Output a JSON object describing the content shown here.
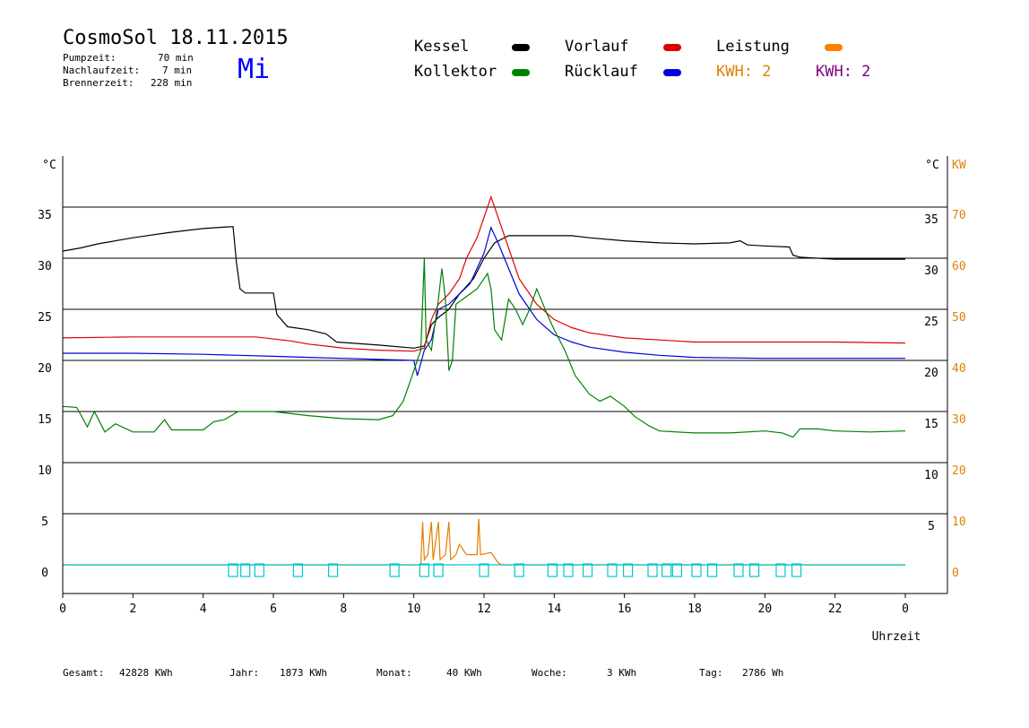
{
  "header": {
    "title": "CosmoSol 18.11.2015",
    "weekday": "Mi",
    "stats": [
      {
        "label": "Pumpzeit:",
        "value": "70 min"
      },
      {
        "label": "Nachlaufzeit:",
        "value": "7 min"
      },
      {
        "label": "Brennerzeit:",
        "value": "228 min"
      }
    ]
  },
  "legend": {
    "kessel": {
      "label": "Kessel",
      "color": "#000000"
    },
    "vorlauf": {
      "label": "Vorlauf",
      "color": "#e00000"
    },
    "leistung": {
      "label": "Leistung",
      "color": "#ff8000"
    },
    "kollektor": {
      "label": "Kollektor",
      "color": "#008000"
    },
    "ruecklauf": {
      "label": "Rücklauf",
      "color": "#0000e0"
    },
    "kwh1": {
      "label": "KWH: 2",
      "color": "#e08000"
    },
    "kwh2": {
      "label": "KWH: 2",
      "color": "#800080"
    }
  },
  "footer": {
    "gesamt_label": "Gesamt:",
    "gesamt_value": "42828 KWh",
    "jahr_label": "Jahr:",
    "jahr_value": "1873 KWh",
    "monat_label": "Monat:",
    "monat_value": "40 KWh",
    "woche_label": "Woche:",
    "woche_value": "3 KWh",
    "tag_label": "Tag:",
    "tag_value": "2786 Wh"
  },
  "chart_data": {
    "type": "line",
    "xlabel": "Uhrzeit",
    "y_unit_left": "°C",
    "y_unit_right": "°C",
    "y2_unit": "KW",
    "xlim": [
      0,
      24
    ],
    "ylim": [
      0,
      35
    ],
    "y2lim": [
      0,
      70
    ],
    "x_ticks": [
      "0",
      "2",
      "4",
      "6",
      "8",
      "10",
      "12",
      "14",
      "16",
      "18",
      "20",
      "22",
      "0"
    ],
    "y_ticks_left": [
      "0",
      "5",
      "10",
      "15",
      "20",
      "25",
      "30",
      "35"
    ],
    "y_ticks_right": [
      "5",
      "10",
      "15",
      "20",
      "25",
      "30",
      "35"
    ],
    "y2_ticks": [
      "0",
      "10",
      "20",
      "30",
      "40",
      "50",
      "60",
      "70"
    ],
    "grid": "horizontal",
    "series": [
      {
        "name": "Kessel",
        "color": "#000000",
        "points": [
          [
            0,
            30.7
          ],
          [
            0.5,
            31
          ],
          [
            1,
            31.4
          ],
          [
            2,
            32
          ],
          [
            3,
            32.5
          ],
          [
            4,
            32.9
          ],
          [
            4.85,
            33.1
          ],
          [
            4.95,
            29.5
          ],
          [
            5.05,
            27
          ],
          [
            5.2,
            26.6
          ],
          [
            6,
            26.6
          ],
          [
            6.1,
            24.5
          ],
          [
            6.4,
            23.3
          ],
          [
            7,
            23
          ],
          [
            7.5,
            22.6
          ],
          [
            7.8,
            21.8
          ],
          [
            9,
            21.5
          ],
          [
            10,
            21.2
          ],
          [
            10.3,
            21.4
          ],
          [
            10.5,
            23.5
          ],
          [
            10.7,
            24.2
          ],
          [
            11,
            25
          ],
          [
            11.3,
            26.5
          ],
          [
            11.7,
            28
          ],
          [
            12,
            30
          ],
          [
            12.3,
            31.5
          ],
          [
            12.7,
            32.2
          ],
          [
            13.5,
            32.2
          ],
          [
            14.5,
            32.2
          ],
          [
            15,
            32
          ],
          [
            16,
            31.7
          ],
          [
            17,
            31.5
          ],
          [
            18,
            31.4
          ],
          [
            19,
            31.5
          ],
          [
            19.3,
            31.7
          ],
          [
            19.5,
            31.3
          ],
          [
            20,
            31.2
          ],
          [
            20.7,
            31.1
          ],
          [
            20.8,
            30.3
          ],
          [
            21,
            30.1
          ],
          [
            22,
            29.9
          ],
          [
            24,
            29.9
          ]
        ]
      },
      {
        "name": "Vorlauf",
        "color": "#e00000",
        "points": [
          [
            0,
            22.2
          ],
          [
            2,
            22.3
          ],
          [
            4,
            22.3
          ],
          [
            5.5,
            22.3
          ],
          [
            6.5,
            21.9
          ],
          [
            7,
            21.6
          ],
          [
            7.5,
            21.4
          ],
          [
            8,
            21.2
          ],
          [
            9,
            21
          ],
          [
            10,
            20.9
          ],
          [
            10.3,
            21.2
          ],
          [
            10.5,
            24
          ],
          [
            10.7,
            25.5
          ],
          [
            11,
            26.5
          ],
          [
            11.3,
            28
          ],
          [
            11.5,
            30
          ],
          [
            11.8,
            32
          ],
          [
            12,
            34
          ],
          [
            12.2,
            36
          ],
          [
            12.4,
            34
          ],
          [
            12.7,
            31
          ],
          [
            13,
            28
          ],
          [
            13.5,
            25.5
          ],
          [
            14,
            24
          ],
          [
            14.5,
            23.2
          ],
          [
            15,
            22.7
          ],
          [
            16,
            22.2
          ],
          [
            17,
            22
          ],
          [
            18,
            21.8
          ],
          [
            20,
            21.8
          ],
          [
            22,
            21.8
          ],
          [
            24,
            21.7
          ]
        ]
      },
      {
        "name": "Rücklauf",
        "color": "#0000e0",
        "points": [
          [
            0,
            20.7
          ],
          [
            2,
            20.7
          ],
          [
            4,
            20.6
          ],
          [
            5,
            20.5
          ],
          [
            6,
            20.4
          ],
          [
            7,
            20.3
          ],
          [
            8,
            20.2
          ],
          [
            9,
            20.1
          ],
          [
            10,
            20
          ],
          [
            10.1,
            18.5
          ],
          [
            10.3,
            21
          ],
          [
            10.5,
            22
          ],
          [
            10.7,
            25
          ],
          [
            11,
            25.5
          ],
          [
            11.3,
            26.5
          ],
          [
            11.6,
            27.5
          ],
          [
            11.8,
            29
          ],
          [
            12,
            30.5
          ],
          [
            12.2,
            33
          ],
          [
            12.4,
            31.5
          ],
          [
            12.7,
            29
          ],
          [
            13,
            26.5
          ],
          [
            13.5,
            24
          ],
          [
            14,
            22.5
          ],
          [
            14.5,
            21.8
          ],
          [
            15,
            21.3
          ],
          [
            16,
            20.8
          ],
          [
            17,
            20.5
          ],
          [
            18,
            20.3
          ],
          [
            20,
            20.2
          ],
          [
            22,
            20.2
          ],
          [
            24,
            20.2
          ]
        ]
      },
      {
        "name": "Kollektor",
        "color": "#008000",
        "points": [
          [
            0,
            15.5
          ],
          [
            0.4,
            15.4
          ],
          [
            0.7,
            13.5
          ],
          [
            0.9,
            15
          ],
          [
            1.2,
            13
          ],
          [
            1.5,
            13.8
          ],
          [
            2,
            13
          ],
          [
            2.6,
            13
          ],
          [
            2.9,
            14.2
          ],
          [
            3.1,
            13.2
          ],
          [
            4,
            13.2
          ],
          [
            4.3,
            14
          ],
          [
            4.6,
            14.2
          ],
          [
            5,
            15
          ],
          [
            6,
            15
          ],
          [
            7,
            14.6
          ],
          [
            8,
            14.3
          ],
          [
            9,
            14.2
          ],
          [
            9.4,
            14.6
          ],
          [
            9.7,
            16
          ],
          [
            9.9,
            18
          ],
          [
            10.1,
            20
          ],
          [
            10.2,
            21
          ],
          [
            10.3,
            30
          ],
          [
            10.35,
            22
          ],
          [
            10.5,
            21
          ],
          [
            10.7,
            26
          ],
          [
            10.8,
            29
          ],
          [
            10.9,
            26
          ],
          [
            11,
            19
          ],
          [
            11.1,
            20
          ],
          [
            11.2,
            25.5
          ],
          [
            11.4,
            26
          ],
          [
            11.6,
            26.5
          ],
          [
            11.8,
            27
          ],
          [
            12,
            28
          ],
          [
            12.1,
            28.5
          ],
          [
            12.2,
            27
          ],
          [
            12.3,
            23
          ],
          [
            12.5,
            22
          ],
          [
            12.7,
            26
          ],
          [
            12.9,
            25
          ],
          [
            13.1,
            23.5
          ],
          [
            13.3,
            25
          ],
          [
            13.5,
            27
          ],
          [
            13.8,
            24.5
          ],
          [
            14,
            23
          ],
          [
            14.3,
            21
          ],
          [
            14.6,
            18.5
          ],
          [
            15,
            16.7
          ],
          [
            15.3,
            16
          ],
          [
            15.6,
            16.5
          ],
          [
            16,
            15.5
          ],
          [
            16.3,
            14.5
          ],
          [
            16.7,
            13.6
          ],
          [
            17,
            13.1
          ],
          [
            18,
            12.9
          ],
          [
            19,
            12.9
          ],
          [
            20,
            13.1
          ],
          [
            20.5,
            12.9
          ],
          [
            20.8,
            12.5
          ],
          [
            21,
            13.3
          ],
          [
            21.5,
            13.3
          ],
          [
            22,
            13.1
          ],
          [
            23,
            13
          ],
          [
            24,
            13.1
          ]
        ]
      },
      {
        "name": "Leistung",
        "color": "#e08000",
        "points": [
          [
            0,
            0
          ],
          [
            10.2,
            0
          ],
          [
            10.25,
            4.2
          ],
          [
            10.3,
            0.5
          ],
          [
            10.4,
            1
          ],
          [
            10.5,
            4.2
          ],
          [
            10.55,
            0.5
          ],
          [
            10.7,
            4.2
          ],
          [
            10.75,
            0.5
          ],
          [
            10.9,
            1
          ],
          [
            11,
            4.2
          ],
          [
            11.05,
            0.5
          ],
          [
            11.2,
            1
          ],
          [
            11.3,
            2
          ],
          [
            11.5,
            1
          ],
          [
            11.8,
            1
          ],
          [
            11.85,
            4.5
          ],
          [
            11.9,
            1
          ],
          [
            12.2,
            1.2
          ],
          [
            12.3,
            0.7
          ],
          [
            12.4,
            0.2
          ],
          [
            12.5,
            0
          ],
          [
            24,
            0
          ]
        ]
      },
      {
        "name": "Pumpe",
        "color": "#00c8c8",
        "points": [
          [
            0,
            0
          ],
          [
            24,
            0
          ]
        ]
      }
    ]
  }
}
